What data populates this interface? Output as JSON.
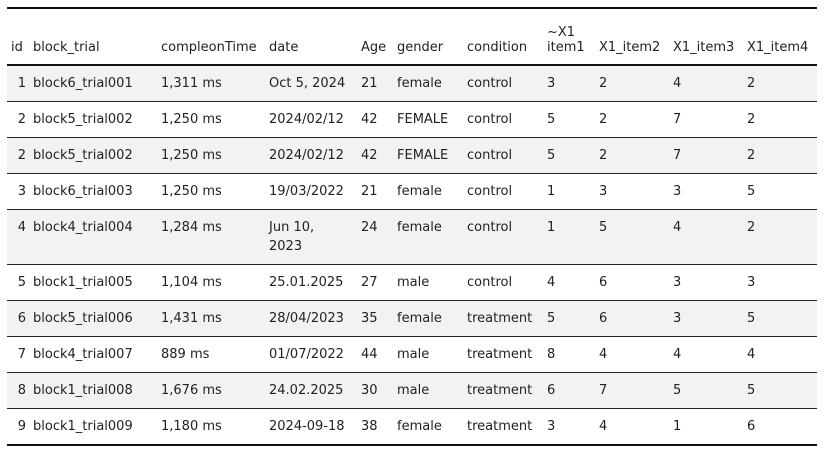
{
  "table": {
    "headers": [
      "id",
      "block_trial",
      "compleonTime",
      "date",
      "Age",
      "gender",
      "condition",
      "~X1 item1",
      "X1_item2",
      "X1_item3",
      "X1_item4"
    ],
    "rows": [
      [
        "1",
        "block6_trial001",
        "1,311 ms",
        "Oct 5, 2024",
        "21",
        "female",
        "control",
        "3",
        "2",
        "4",
        "2"
      ],
      [
        "2",
        "block5_trial002",
        "1,250 ms",
        "2024/02/12",
        "42",
        "FEMALE",
        "control",
        "5",
        "2",
        "7",
        "2"
      ],
      [
        "2",
        "block5_trial002",
        "1,250 ms",
        "2024/02/12",
        "42",
        "FEMALE",
        "control",
        "5",
        "2",
        "7",
        "2"
      ],
      [
        "3",
        "block6_trial003",
        "1,250 ms",
        "19/03/2022",
        "21",
        "female",
        "control",
        "1",
        "3",
        "3",
        "5"
      ],
      [
        "4",
        "block4_trial004",
        "1,284 ms",
        "Jun 10, 2023",
        "24",
        "female",
        "control",
        "1",
        "5",
        "4",
        "2"
      ],
      [
        "5",
        "block1_trial005",
        "1,104 ms",
        "25.01.2025",
        "27",
        "male",
        "control",
        "4",
        "6",
        "3",
        "3"
      ],
      [
        "6",
        "block5_trial006",
        "1,431 ms",
        "28/04/2023",
        "35",
        "female",
        "treatment",
        "5",
        "6",
        "3",
        "5"
      ],
      [
        "7",
        "block4_trial007",
        "889 ms",
        "01/07/2022",
        "44",
        "male",
        "treatment",
        "8",
        "4",
        "4",
        "4"
      ],
      [
        "8",
        "block1_trial008",
        "1,676 ms",
        "24.02.2025",
        "30",
        "male",
        "treatment",
        "6",
        "7",
        "5",
        "5"
      ],
      [
        "9",
        "block1_trial009",
        "1,180 ms",
        "2024-09-18",
        "38",
        "female",
        "treatment",
        "3",
        "4",
        "1",
        "6"
      ]
    ]
  }
}
